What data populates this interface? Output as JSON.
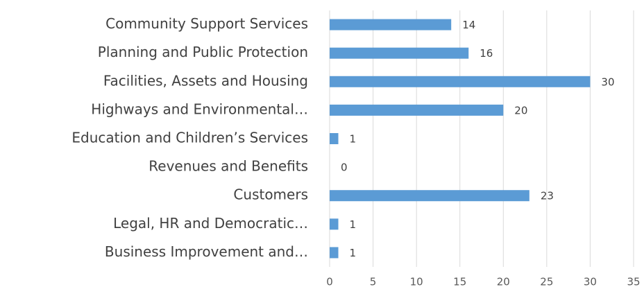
{
  "chart_data": {
    "type": "bar",
    "orientation": "horizontal",
    "categories": [
      "Community Support Services",
      "Planning and Public Protection",
      "Facilities, Assets and Housing",
      "Highways and Environmental…",
      "Education and Children’s Services",
      "Revenues and Benefits",
      "Customers",
      "Legal, HR and Democratic…",
      "Business Improvement and…"
    ],
    "values": [
      14,
      16,
      30,
      20,
      1,
      0,
      23,
      1,
      1
    ],
    "color": "#5b9bd5",
    "xlim": [
      0,
      35
    ],
    "xticks": [
      0,
      5,
      10,
      15,
      20,
      25,
      30,
      35
    ],
    "grid": true
  }
}
